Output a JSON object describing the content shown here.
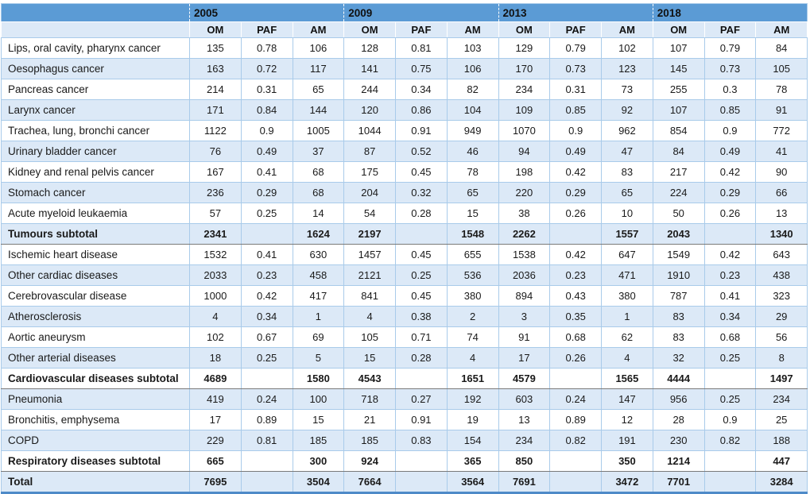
{
  "colors": {
    "header_blue": "#5B9BD5",
    "stripe_blue": "#DCE9F7",
    "grid_border": "#A9CBEA",
    "dark_border": "#565656",
    "bottom_border": "#4E8AC8"
  },
  "table": {
    "years": [
      "2005",
      "2009",
      "2013",
      "2018"
    ],
    "metric_headers": [
      "OM",
      "PAF",
      "AM"
    ],
    "rows": [
      {
        "label": "Lips, oral cavity, pharynx cancer",
        "type": "data",
        "values": [
          "135",
          "0.78",
          "106",
          "128",
          "0.81",
          "103",
          "129",
          "0.79",
          "102",
          "107",
          "0.79",
          "84"
        ]
      },
      {
        "label": "Oesophagus cancer",
        "type": "data",
        "values": [
          "163",
          "0.72",
          "117",
          "141",
          "0.75",
          "106",
          "170",
          "0.73",
          "123",
          "145",
          "0.73",
          "105"
        ]
      },
      {
        "label": "Pancreas cancer",
        "type": "data",
        "values": [
          "214",
          "0.31",
          "65",
          "244",
          "0.34",
          "82",
          "234",
          "0.31",
          "73",
          "255",
          "0.3",
          "78"
        ]
      },
      {
        "label": "Larynx cancer",
        "type": "data",
        "values": [
          "171",
          "0.84",
          "144",
          "120",
          "0.86",
          "104",
          "109",
          "0.85",
          "92",
          "107",
          "0.85",
          "91"
        ]
      },
      {
        "label": "Trachea, lung, bronchi cancer",
        "type": "data",
        "values": [
          "1122",
          "0.9",
          "1005",
          "1044",
          "0.91",
          "949",
          "1070",
          "0.9",
          "962",
          "854",
          "0.9",
          "772"
        ]
      },
      {
        "label": "Urinary bladder cancer",
        "type": "data",
        "values": [
          "76",
          "0.49",
          "37",
          "87",
          "0.52",
          "46",
          "94",
          "0.49",
          "47",
          "84",
          "0.49",
          "41"
        ]
      },
      {
        "label": "Kidney and renal pelvis cancer",
        "type": "data",
        "values": [
          "167",
          "0.41",
          "68",
          "175",
          "0.45",
          "78",
          "198",
          "0.42",
          "83",
          "217",
          "0.42",
          "90"
        ]
      },
      {
        "label": "Stomach cancer",
        "type": "data",
        "values": [
          "236",
          "0.29",
          "68",
          "204",
          "0.32",
          "65",
          "220",
          "0.29",
          "65",
          "224",
          "0.29",
          "66"
        ]
      },
      {
        "label": "Acute myeloid leukaemia",
        "type": "data",
        "values": [
          "57",
          "0.25",
          "14",
          "54",
          "0.28",
          "15",
          "38",
          "0.26",
          "10",
          "50",
          "0.26",
          "13"
        ]
      },
      {
        "label": "Tumours subtotal",
        "type": "subtotal",
        "values": [
          "2341",
          "",
          "1624",
          "2197",
          "",
          "1548",
          "2262",
          "",
          "1557",
          "2043",
          "",
          "1340"
        ]
      },
      {
        "label": "Ischemic heart disease",
        "type": "data",
        "values": [
          "1532",
          "0.41",
          "630",
          "1457",
          "0.45",
          "655",
          "1538",
          "0.42",
          "647",
          "1549",
          "0.42",
          "643"
        ]
      },
      {
        "label": "Other cardiac diseases",
        "type": "data",
        "values": [
          "2033",
          "0.23",
          "458",
          "2121",
          "0.25",
          "536",
          "2036",
          "0.23",
          "471",
          "1910",
          "0.23",
          "438"
        ]
      },
      {
        "label": "Cerebrovascular disease",
        "type": "data",
        "values": [
          "1000",
          "0.42",
          "417",
          "841",
          "0.45",
          "380",
          "894",
          "0.43",
          "380",
          "787",
          "0.41",
          "323"
        ]
      },
      {
        "label": "Atherosclerosis",
        "type": "data",
        "values": [
          "4",
          "0.34",
          "1",
          "4",
          "0.38",
          "2",
          "3",
          "0.35",
          "1",
          "83",
          "0.34",
          "29"
        ]
      },
      {
        "label": "Aortic aneurysm",
        "type": "data",
        "values": [
          "102",
          "0.67",
          "69",
          "105",
          "0.71",
          "74",
          "91",
          "0.68",
          "62",
          "83",
          "0.68",
          "56"
        ]
      },
      {
        "label": "Other arterial diseases",
        "type": "data",
        "values": [
          "18",
          "0.25",
          "5",
          "15",
          "0.28",
          "4",
          "17",
          "0.26",
          "4",
          "32",
          "0.25",
          "8"
        ]
      },
      {
        "label": "Cardiovascular diseases subtotal",
        "type": "subtotal",
        "values": [
          "4689",
          "",
          "1580",
          "4543",
          "",
          "1651",
          "4579",
          "",
          "1565",
          "4444",
          "",
          "1497"
        ]
      },
      {
        "label": "Pneumonia",
        "type": "data",
        "values": [
          "419",
          "0.24",
          "100",
          "718",
          "0.27",
          "192",
          "603",
          "0.24",
          "147",
          "956",
          "0.25",
          "234"
        ]
      },
      {
        "label": "Bronchitis, emphysema",
        "type": "data",
        "values": [
          "17",
          "0.89",
          "15",
          "21",
          "0.91",
          "19",
          "13",
          "0.89",
          "12",
          "28",
          "0.9",
          "25"
        ]
      },
      {
        "label": "COPD",
        "type": "data",
        "values": [
          "229",
          "0.81",
          "185",
          "185",
          "0.83",
          "154",
          "234",
          "0.82",
          "191",
          "230",
          "0.82",
          "188"
        ]
      },
      {
        "label": "Respiratory diseases subtotal",
        "type": "subtotal",
        "values": [
          "665",
          "",
          "300",
          "924",
          "",
          "365",
          "850",
          "",
          "350",
          "1214",
          "",
          "447"
        ]
      },
      {
        "label": "Total",
        "type": "total",
        "values": [
          "7695",
          "",
          "3504",
          "7664",
          "",
          "3564",
          "7691",
          "",
          "3472",
          "7701",
          "",
          "3284"
        ]
      }
    ]
  }
}
